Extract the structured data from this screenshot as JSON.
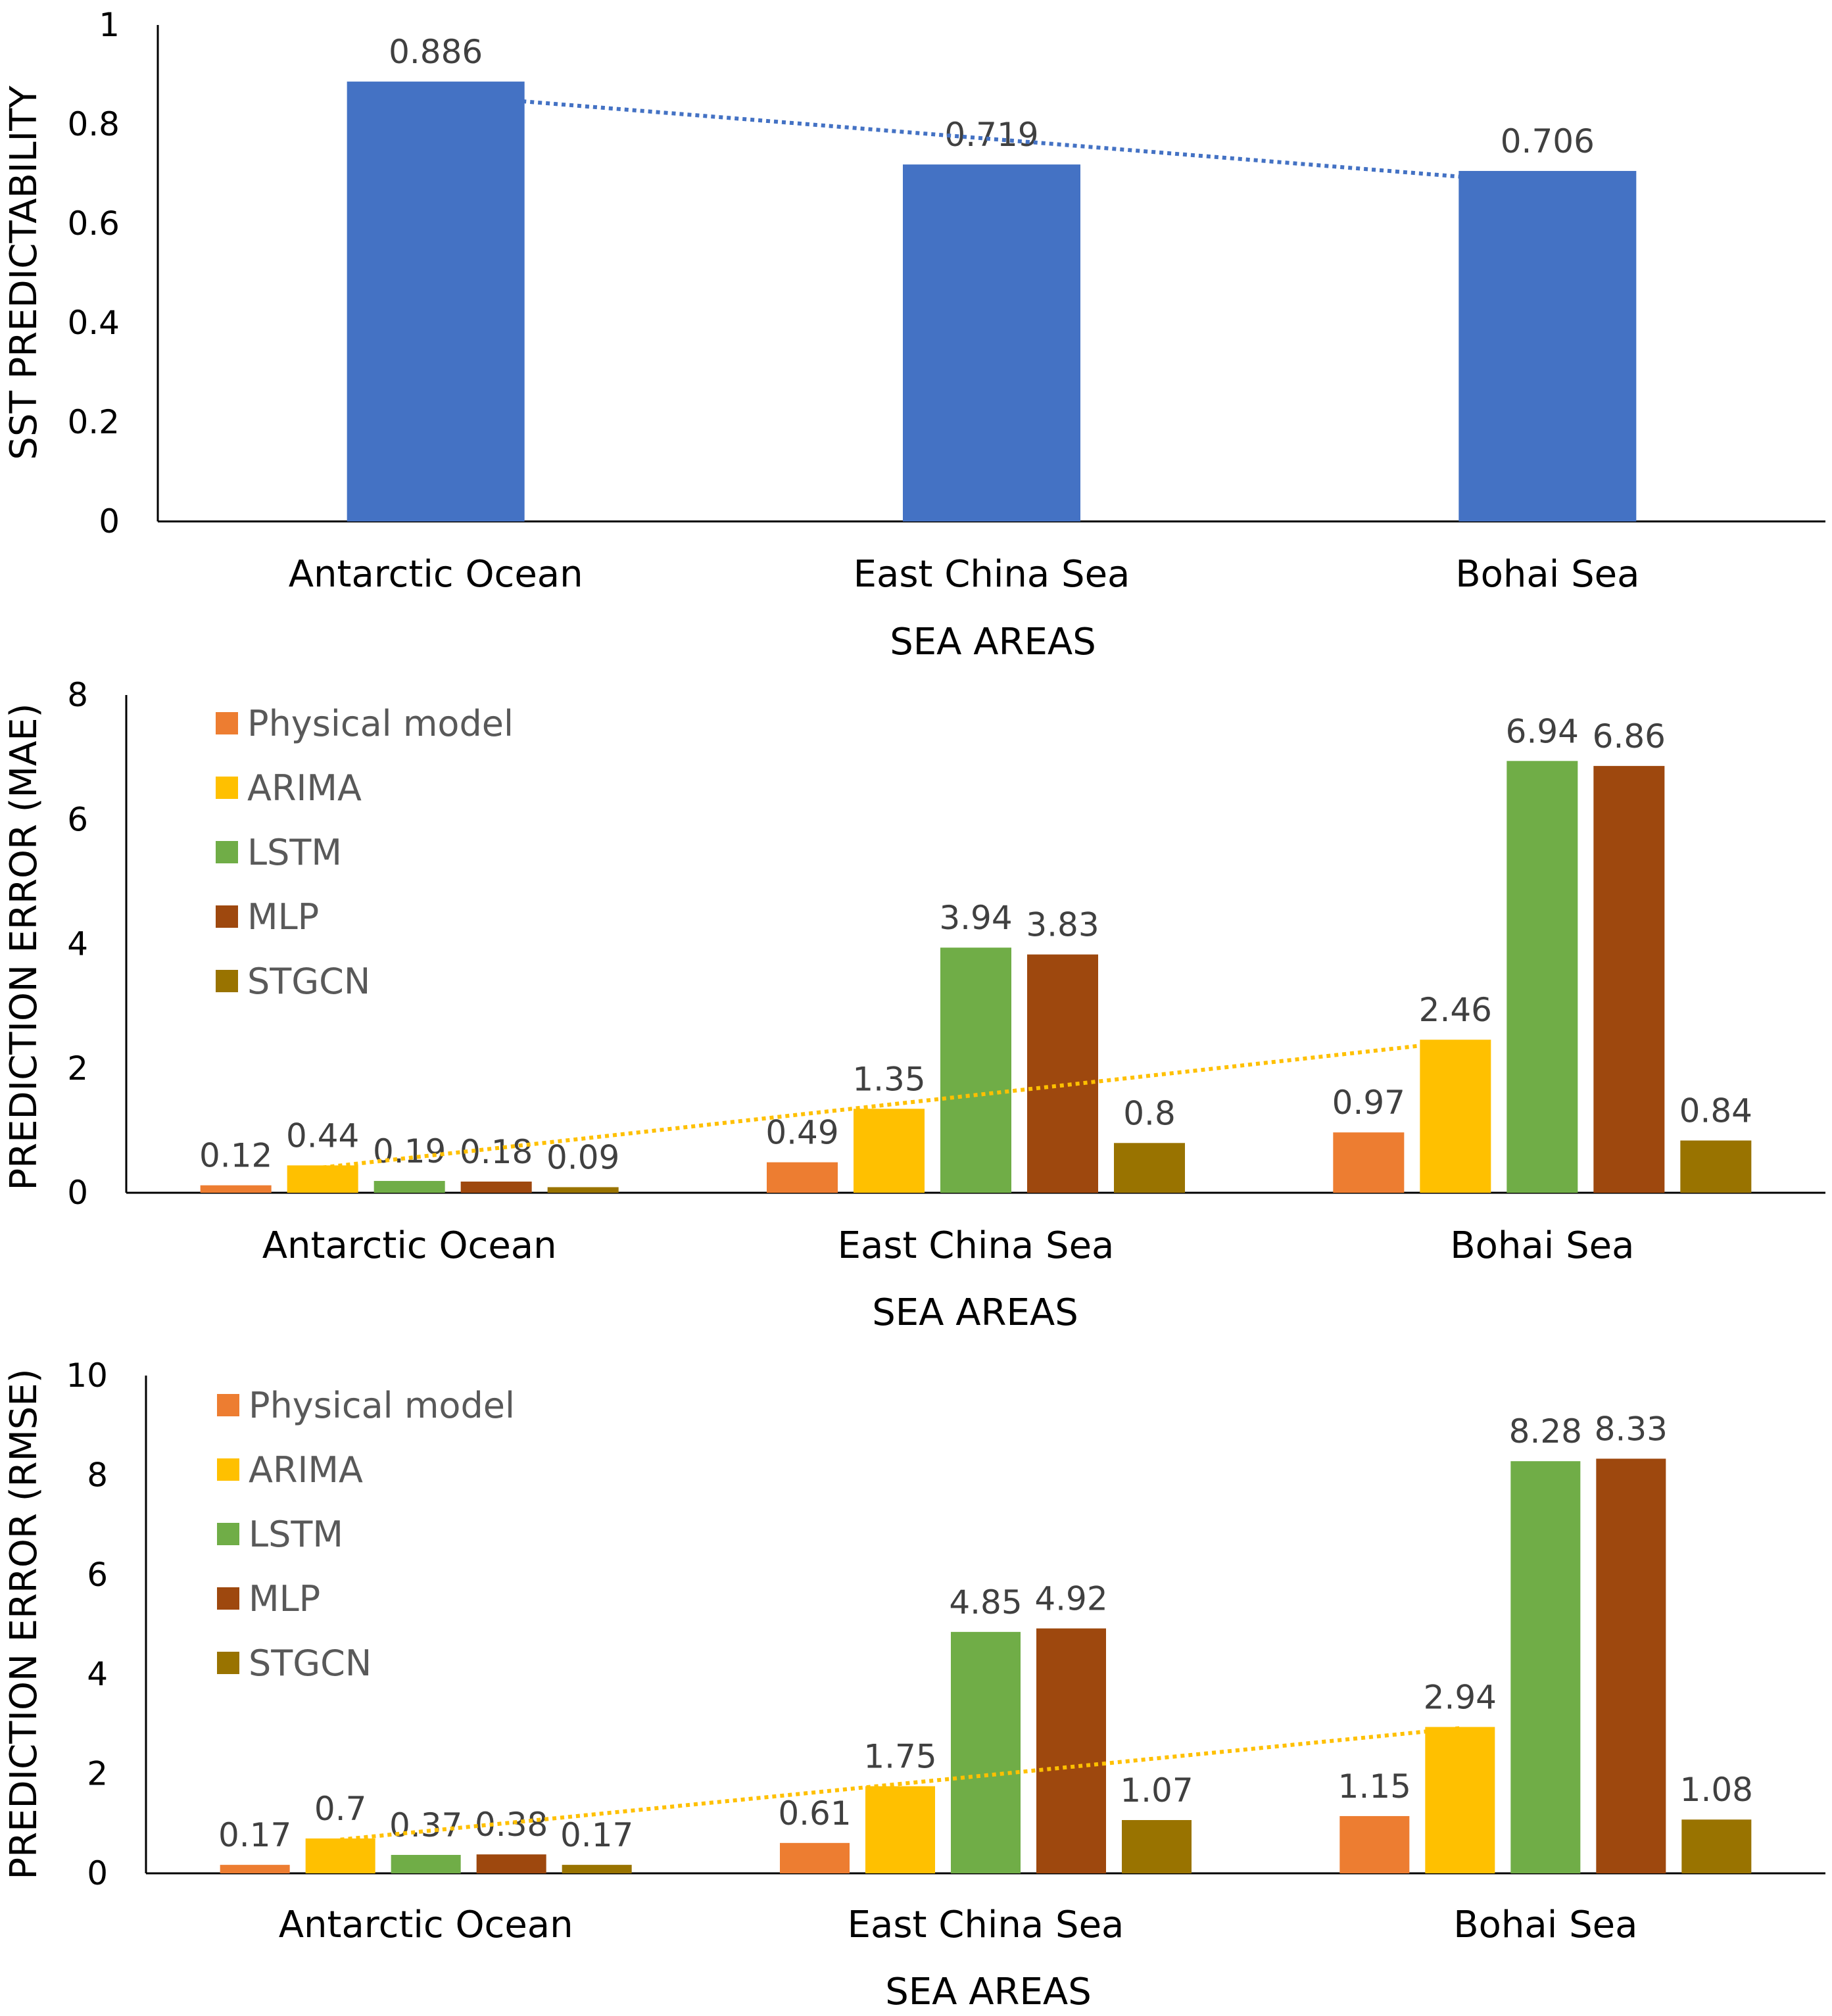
{
  "chart_data": [
    {
      "type": "bar",
      "title": "",
      "xlabel": "SEA AREAS",
      "ylabel": "SST PREDICTABILITY",
      "ylim": [
        0,
        1
      ],
      "yticks": [
        "0",
        "0.2",
        "0.4",
        "0.6",
        "0.8",
        "1"
      ],
      "categories": [
        "Antarctic Ocean",
        "East China Sea",
        "Bohai Sea"
      ],
      "series": [
        {
          "name": "SST predictability",
          "values": [
            0.886,
            0.719,
            0.706
          ],
          "labels": [
            "0.886",
            "0.719",
            "0.706"
          ],
          "color": "#4472C4"
        }
      ],
      "trendline": {
        "series": "SST predictability",
        "style": "dotted",
        "color": "#4472C4"
      },
      "legend": "none"
    },
    {
      "type": "bar",
      "title": "",
      "xlabel": "SEA AREAS",
      "ylabel": "PREDICTION ERROR (MAE)",
      "ylim": [
        0,
        8
      ],
      "yticks": [
        "0",
        "2",
        "4",
        "6",
        "8"
      ],
      "categories": [
        "Antarctic Ocean",
        "East China Sea",
        "Bohai Sea"
      ],
      "series": [
        {
          "name": "Physical model",
          "values": [
            0.12,
            0.49,
            0.97
          ],
          "labels": [
            "0.12",
            "0.49",
            "0.97"
          ],
          "color": "#ED7D31"
        },
        {
          "name": "ARIMA",
          "values": [
            0.44,
            1.35,
            2.46
          ],
          "labels": [
            "0.44",
            "1.35",
            "2.46"
          ],
          "color": "#FFC000"
        },
        {
          "name": "LSTM",
          "values": [
            0.19,
            3.94,
            6.94
          ],
          "labels": [
            "0.19",
            "3.94",
            "6.94"
          ],
          "color": "#70AD47"
        },
        {
          "name": "MLP",
          "values": [
            0.18,
            3.83,
            6.86
          ],
          "labels": [
            "0.18",
            "3.83",
            "6.86"
          ],
          "color": "#9E480E"
        },
        {
          "name": "STGCN",
          "values": [
            0.09,
            0.8,
            0.84
          ],
          "labels": [
            "0.09",
            "0.8",
            "0.84"
          ],
          "color": "#997300"
        }
      ],
      "trendline": {
        "series": "ARIMA",
        "style": "dotted",
        "color": "#FFC000"
      },
      "legend": "top-left"
    },
    {
      "type": "bar",
      "title": "",
      "xlabel": "SEA AREAS",
      "ylabel": "PREDICTION ERROR (RMSE)",
      "ylim": [
        0,
        10
      ],
      "yticks": [
        "0",
        "2",
        "4",
        "6",
        "8",
        "10"
      ],
      "categories": [
        "Antarctic Ocean",
        "East China Sea",
        "Bohai Sea"
      ],
      "series": [
        {
          "name": "Physical model",
          "values": [
            0.17,
            0.61,
            1.15
          ],
          "labels": [
            "0.17",
            "0.61",
            "1.15"
          ],
          "color": "#ED7D31"
        },
        {
          "name": "ARIMA",
          "values": [
            0.7,
            1.75,
            2.94
          ],
          "labels": [
            "0.7",
            "1.75",
            "2.94"
          ],
          "color": "#FFC000"
        },
        {
          "name": "LSTM",
          "values": [
            0.37,
            4.85,
            8.28
          ],
          "labels": [
            "0.37",
            "4.85",
            "8.28"
          ],
          "color": "#70AD47"
        },
        {
          "name": "MLP",
          "values": [
            0.38,
            4.92,
            8.33
          ],
          "labels": [
            "0.38",
            "4.92",
            "8.33"
          ],
          "color": "#9E480E"
        },
        {
          "name": "STGCN",
          "values": [
            0.17,
            1.07,
            1.08
          ],
          "labels": [
            "0.17",
            "1.07",
            "1.08"
          ],
          "color": "#997300"
        }
      ],
      "trendline": {
        "series": "ARIMA",
        "style": "dotted",
        "color": "#FFC000"
      },
      "legend": "top-left"
    }
  ]
}
